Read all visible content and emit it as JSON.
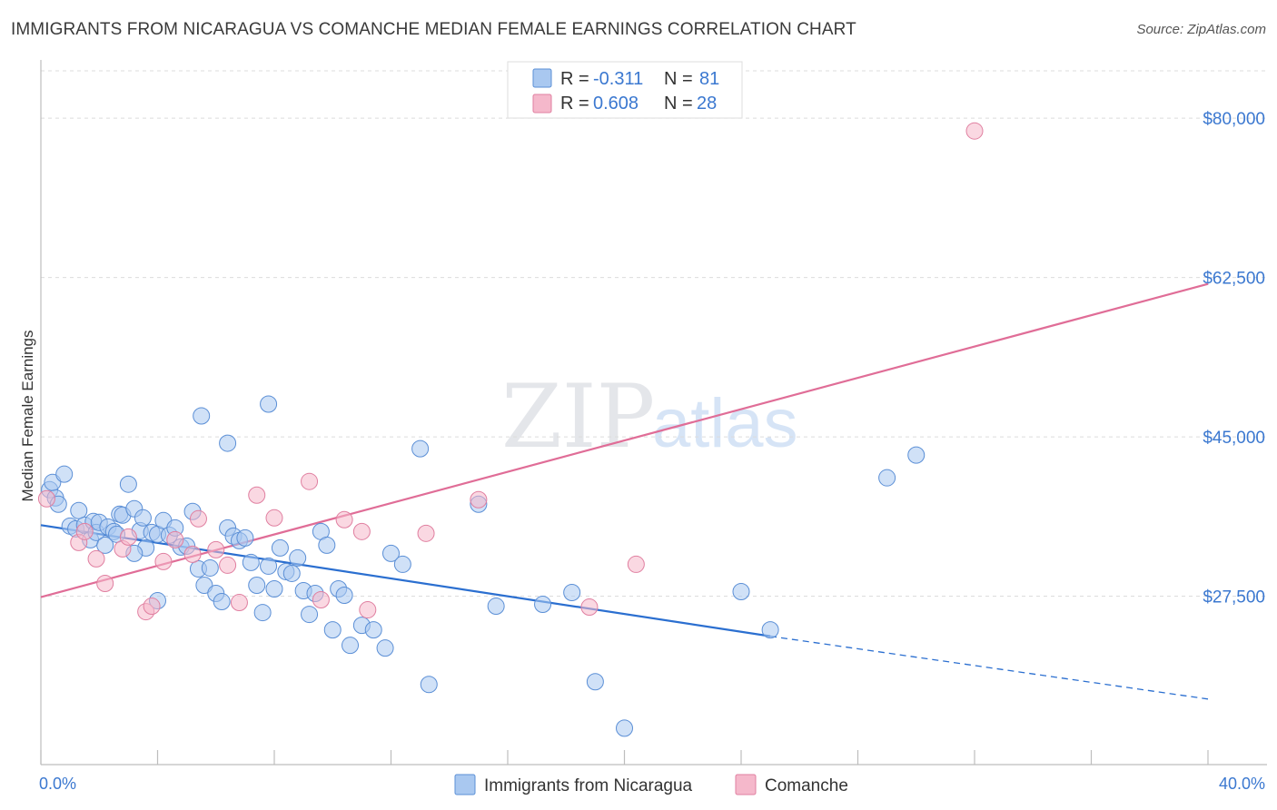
{
  "header": {
    "title": "IMMIGRANTS FROM NICARAGUA VS COMANCHE MEDIAN FEMALE EARNINGS CORRELATION CHART",
    "source": "Source: ZipAtlas.com"
  },
  "watermark": {
    "zip": "ZIP",
    "atlas": "atlas"
  },
  "legend": {
    "rows": [
      {
        "r_label": "R =",
        "r_value": "-0.311",
        "n_label": "N =",
        "n_value": "81",
        "color": "#a9c8f0"
      },
      {
        "r_label": "R =",
        "r_value": "0.608",
        "n_label": "N =",
        "n_value": "28",
        "color": "#f5b8cb"
      }
    ]
  },
  "chart_data": {
    "type": "scatter",
    "title": "IMMIGRANTS FROM NICARAGUA VS COMANCHE MEDIAN FEMALE EARNINGS CORRELATION CHART",
    "xlabel": "",
    "ylabel": "Median Female Earnings",
    "xlim": [
      0,
      40
    ],
    "ylim": [
      9000,
      86000
    ],
    "x_tick_labels": [
      "0.0%",
      "40.0%"
    ],
    "y_ticks": [
      27500,
      45000,
      62500,
      80000
    ],
    "y_tick_labels": [
      "$27,500",
      "$45,000",
      "$62,500",
      "$80,000"
    ],
    "grid": true,
    "legend_position": "bottom",
    "series": [
      {
        "name": "Immigrants from Nicaragua",
        "color": "#a9c8f0",
        "stroke": "#5b8fd6",
        "line_color": "#2b6fd0",
        "trend": {
          "x": [
            0,
            25
          ],
          "y": [
            35300,
            23100
          ],
          "dashed_to": [
            40,
            16200
          ]
        },
        "points": [
          [
            0.3,
            39200
          ],
          [
            0.5,
            38300
          ],
          [
            0.6,
            37600
          ],
          [
            0.4,
            40000
          ],
          [
            0.8,
            40900
          ],
          [
            1.0,
            35200
          ],
          [
            1.2,
            34900
          ],
          [
            1.3,
            36900
          ],
          [
            1.5,
            35300
          ],
          [
            1.7,
            33700
          ],
          [
            1.8,
            35700
          ],
          [
            1.9,
            34500
          ],
          [
            2.0,
            35600
          ],
          [
            2.2,
            33100
          ],
          [
            2.3,
            35100
          ],
          [
            2.5,
            34600
          ],
          [
            2.6,
            34300
          ],
          [
            2.7,
            36500
          ],
          [
            2.8,
            36400
          ],
          [
            3.0,
            39800
          ],
          [
            3.2,
            37100
          ],
          [
            3.4,
            34700
          ],
          [
            3.5,
            36100
          ],
          [
            3.6,
            32800
          ],
          [
            3.8,
            34500
          ],
          [
            4.0,
            34300
          ],
          [
            4.2,
            35800
          ],
          [
            4.4,
            34200
          ],
          [
            4.6,
            35000
          ],
          [
            4.8,
            32900
          ],
          [
            5.0,
            33000
          ],
          [
            5.2,
            36800
          ],
          [
            5.4,
            30500
          ],
          [
            5.6,
            28700
          ],
          [
            5.8,
            30600
          ],
          [
            6.0,
            27800
          ],
          [
            6.2,
            26900
          ],
          [
            6.4,
            35000
          ],
          [
            6.6,
            34100
          ],
          [
            6.8,
            33600
          ],
          [
            7.0,
            33900
          ],
          [
            7.2,
            31200
          ],
          [
            7.4,
            28700
          ],
          [
            7.6,
            25700
          ],
          [
            7.8,
            30800
          ],
          [
            8.0,
            28300
          ],
          [
            8.2,
            32800
          ],
          [
            8.4,
            30200
          ],
          [
            8.6,
            30000
          ],
          [
            8.8,
            31700
          ],
          [
            9.0,
            28100
          ],
          [
            9.2,
            25500
          ],
          [
            9.4,
            27800
          ],
          [
            9.6,
            34600
          ],
          [
            9.8,
            33100
          ],
          [
            10.0,
            23800
          ],
          [
            10.2,
            28300
          ],
          [
            10.4,
            27600
          ],
          [
            10.6,
            22100
          ],
          [
            11.0,
            24300
          ],
          [
            11.4,
            23800
          ],
          [
            11.8,
            21800
          ],
          [
            12.0,
            32200
          ],
          [
            12.4,
            31000
          ],
          [
            13.0,
            43700
          ],
          [
            13.3,
            17800
          ],
          [
            15.0,
            37600
          ],
          [
            15.6,
            26400
          ],
          [
            17.2,
            26600
          ],
          [
            18.2,
            27900
          ],
          [
            19.0,
            18100
          ],
          [
            20.0,
            13000
          ],
          [
            24.0,
            28000
          ],
          [
            25.0,
            23800
          ],
          [
            29.0,
            40500
          ],
          [
            30.0,
            43000
          ],
          [
            3.2,
            32200
          ],
          [
            4.0,
            27000
          ],
          [
            5.5,
            47300
          ],
          [
            6.4,
            44300
          ],
          [
            7.8,
            48600
          ]
        ]
      },
      {
        "name": "Comanche",
        "color": "#f5b8cb",
        "stroke": "#e07fa0",
        "line_color": "#e06d97",
        "trend": {
          "x": [
            0,
            40
          ],
          "y": [
            27400,
            61800
          ]
        },
        "points": [
          [
            0.2,
            38200
          ],
          [
            1.3,
            33400
          ],
          [
            1.5,
            34600
          ],
          [
            1.9,
            31600
          ],
          [
            2.2,
            28900
          ],
          [
            2.8,
            32700
          ],
          [
            3.0,
            34000
          ],
          [
            3.6,
            25800
          ],
          [
            3.8,
            26400
          ],
          [
            4.2,
            31300
          ],
          [
            4.6,
            33700
          ],
          [
            5.2,
            32100
          ],
          [
            5.4,
            36000
          ],
          [
            6.0,
            32600
          ],
          [
            6.4,
            30900
          ],
          [
            6.8,
            26800
          ],
          [
            7.4,
            38600
          ],
          [
            8.0,
            36100
          ],
          [
            9.2,
            40100
          ],
          [
            9.6,
            27100
          ],
          [
            10.4,
            35900
          ],
          [
            11.0,
            34600
          ],
          [
            11.2,
            26000
          ],
          [
            13.2,
            34400
          ],
          [
            15.0,
            38100
          ],
          [
            18.8,
            26300
          ],
          [
            20.4,
            31000
          ],
          [
            32.0,
            78600
          ]
        ]
      }
    ]
  }
}
